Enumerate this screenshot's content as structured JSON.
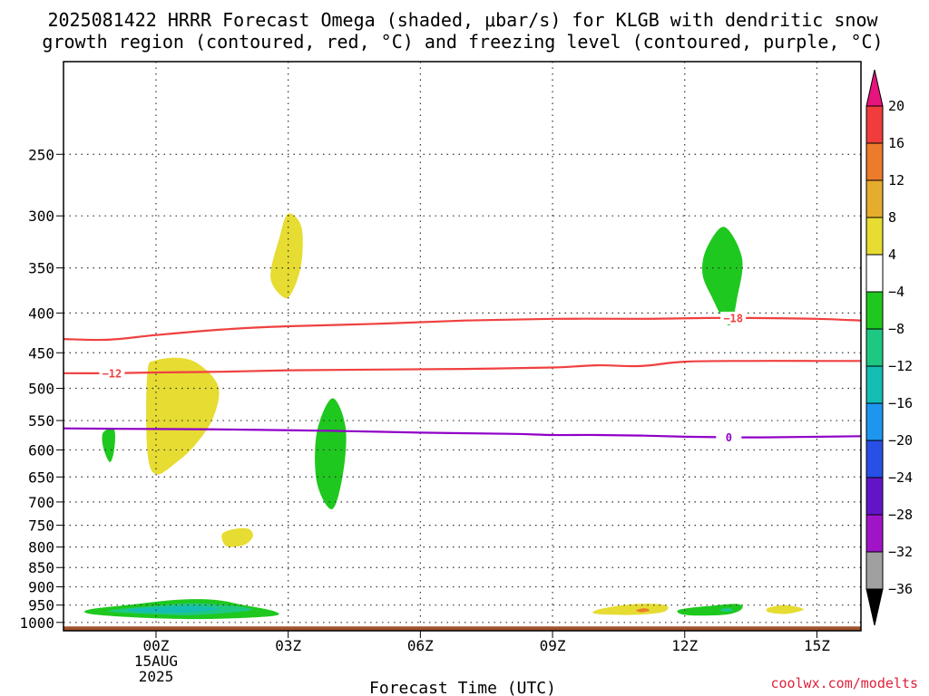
{
  "chart_data": {
    "type": "time-height-contour",
    "title_lines": [
      "2025081422 HRRR Forecast Omega (shaded, μbar/s) for KLGB with dendritic snow",
      "growth region (contoured, red, °C) and freezing level (contoured, purple, °C)"
    ],
    "xlabel": "Forecast Time (UTC)",
    "credit": "coolwx.com/modelts",
    "x_axis": {
      "unit": "hours",
      "range": [
        -2.1,
        16
      ],
      "ticks": [
        {
          "hour": 0,
          "labels": [
            "00Z",
            "15AUG",
            "2025"
          ]
        },
        {
          "hour": 3,
          "labels": [
            "03Z"
          ]
        },
        {
          "hour": 6,
          "labels": [
            "06Z"
          ]
        },
        {
          "hour": 9,
          "labels": [
            "09Z"
          ]
        },
        {
          "hour": 12,
          "labels": [
            "12Z"
          ]
        },
        {
          "hour": 15,
          "labels": [
            "15Z"
          ]
        }
      ]
    },
    "y_axis": {
      "unit": "hPa",
      "scale": "log",
      "range": [
        1025,
        190
      ],
      "ticks": [
        250,
        300,
        350,
        400,
        450,
        500,
        550,
        600,
        650,
        700,
        750,
        800,
        850,
        900,
        950,
        1000
      ],
      "grid": "dotted"
    },
    "colorbar": {
      "ticks": [
        "20",
        "16",
        "12",
        "8",
        "4",
        "−4",
        "−8",
        "−12",
        "−16",
        "−20",
        "−24",
        "−28",
        "−32",
        "−36"
      ],
      "colors": [
        "#f03c3c",
        "#ec7b2c",
        "#e6ac2e",
        "#e6dc32",
        "#ffffff",
        "#1ec81e",
        "#1ec882",
        "#14beb4",
        "#1e96f0",
        "#2850e6",
        "#6414c8",
        "#a014c8",
        "#a0a0a0"
      ],
      "top_arrow_color": "#e6147c",
      "bottom_arrow_color": "#000000"
    },
    "ground": {
      "pressure": 1012,
      "color": "#a0522d"
    },
    "contours": [
      {
        "label": "-18",
        "color": "#f04040",
        "label_hour": 13.1,
        "points": [
          [
            -2.1,
            432
          ],
          [
            -1.1,
            433
          ],
          [
            0,
            427
          ],
          [
            1.5,
            420
          ],
          [
            3,
            416
          ],
          [
            5,
            413
          ],
          [
            7,
            409
          ],
          [
            9,
            407
          ],
          [
            11,
            407
          ],
          [
            12.5,
            406
          ],
          [
            13.5,
            406
          ],
          [
            15,
            407
          ],
          [
            16,
            409
          ]
        ]
      },
      {
        "label": "-12",
        "color": "#f04040",
        "label_hour": -1.0,
        "points": [
          [
            -2.1,
            478
          ],
          [
            -1,
            478
          ],
          [
            0,
            477
          ],
          [
            1.5,
            476
          ],
          [
            3,
            474
          ],
          [
            5,
            473
          ],
          [
            7,
            472
          ],
          [
            9,
            470
          ],
          [
            10,
            467
          ],
          [
            11,
            468
          ],
          [
            12,
            462
          ],
          [
            13.5,
            461
          ],
          [
            15,
            461
          ],
          [
            16,
            461
          ]
        ]
      },
      {
        "label": "0",
        "color": "#9000c8",
        "label_hour": 13.0,
        "points": [
          [
            -2.1,
            563
          ],
          [
            0,
            564
          ],
          [
            2,
            565
          ],
          [
            4,
            567
          ],
          [
            6,
            570
          ],
          [
            8,
            572
          ],
          [
            9,
            574
          ],
          [
            10,
            574
          ],
          [
            11,
            575
          ],
          [
            12,
            577
          ],
          [
            13,
            578
          ],
          [
            14,
            578
          ],
          [
            16,
            576
          ]
        ]
      }
    ],
    "shaded_regions": [
      {
        "color": "#e6dc32",
        "points": [
          [
            0,
            460
          ],
          [
            0.8,
            460
          ],
          [
            1.4,
            495
          ],
          [
            1.3,
            545
          ],
          [
            0.9,
            590
          ],
          [
            0.5,
            620
          ],
          [
            0,
            645
          ],
          [
            -0.2,
            600
          ],
          [
            -0.2,
            480
          ]
        ]
      },
      {
        "color": "#e6dc32",
        "points": [
          [
            3,
            298
          ],
          [
            3.3,
            310
          ],
          [
            3.3,
            345
          ],
          [
            3.1,
            375
          ],
          [
            2.9,
            382
          ],
          [
            2.6,
            360
          ],
          [
            2.8,
            320
          ]
        ]
      },
      {
        "color": "#e6dc32",
        "points": [
          [
            1.5,
            770
          ],
          [
            1.8,
            758
          ],
          [
            2.1,
            758
          ],
          [
            2.2,
            775
          ],
          [
            2,
            795
          ],
          [
            1.6,
            798
          ]
        ]
      },
      {
        "color": "#1ec81e",
        "points": [
          [
            -1.2,
            570
          ],
          [
            -0.95,
            565
          ],
          [
            -0.95,
            600
          ],
          [
            -1.05,
            622
          ],
          [
            -1.2,
            595
          ]
        ]
      },
      {
        "color": "#1ec81e",
        "points": [
          [
            4.0,
            515
          ],
          [
            4.3,
            560
          ],
          [
            4.25,
            640
          ],
          [
            4.0,
            715
          ],
          [
            3.65,
            660
          ],
          [
            3.65,
            570
          ]
        ]
      },
      {
        "color": "#1ec81e",
        "points": [
          [
            12.9,
            310
          ],
          [
            13.3,
            340
          ],
          [
            13.2,
            380
          ],
          [
            13.0,
            415
          ],
          [
            12.6,
            380
          ],
          [
            12.4,
            355
          ],
          [
            12.5,
            330
          ]
        ]
      },
      {
        "color": "#1ec81e",
        "points": [
          [
            -1.5,
            962
          ],
          [
            -0.5,
            948
          ],
          [
            0.5,
            935
          ],
          [
            1.3,
            935
          ],
          [
            2,
            950
          ],
          [
            2.7,
            968
          ],
          [
            2.6,
            982
          ],
          [
            1,
            990
          ],
          [
            -0.5,
            985
          ],
          [
            -1.5,
            975
          ]
        ]
      },
      {
        "color": "#1ec882",
        "points": [
          [
            -1.1,
            967
          ],
          [
            0,
            952
          ],
          [
            1,
            945
          ],
          [
            2.2,
            962
          ],
          [
            1,
            978
          ],
          [
            0,
            976
          ]
        ]
      },
      {
        "color": "#14beb4",
        "points": [
          [
            -0.6,
            962
          ],
          [
            0.2,
            955
          ],
          [
            0.9,
            953
          ],
          [
            1.4,
            962
          ],
          [
            0.5,
            972
          ],
          [
            -0.4,
            970
          ]
        ]
      },
      {
        "color": "#e6dc32",
        "points": [
          [
            10.0,
            964
          ],
          [
            10.6,
            950
          ],
          [
            11.2,
            946
          ],
          [
            11.6,
            952
          ],
          [
            11.5,
            970
          ],
          [
            10.8,
            978
          ],
          [
            10.0,
            975
          ]
        ]
      },
      {
        "color": "#ec7b2c",
        "points": [
          [
            10.9,
            964
          ],
          [
            11.1,
            959
          ],
          [
            11.2,
            966
          ],
          [
            11.0,
            970
          ]
        ]
      },
      {
        "color": "#1ec81e",
        "points": [
          [
            11.9,
            962
          ],
          [
            12.6,
            952
          ],
          [
            13.2,
            947
          ],
          [
            13.3,
            960
          ],
          [
            13.0,
            976
          ],
          [
            12.3,
            980
          ],
          [
            11.9,
            975
          ]
        ]
      },
      {
        "color": "#1ec882",
        "points": [
          [
            12.8,
            962
          ],
          [
            13.0,
            958
          ],
          [
            13.1,
            966
          ],
          [
            12.9,
            969
          ]
        ]
      },
      {
        "color": "#e6dc32",
        "points": [
          [
            13.9,
            958
          ],
          [
            14.3,
            950
          ],
          [
            14.7,
            962
          ],
          [
            14.3,
            975
          ],
          [
            13.9,
            970
          ]
        ]
      }
    ]
  }
}
